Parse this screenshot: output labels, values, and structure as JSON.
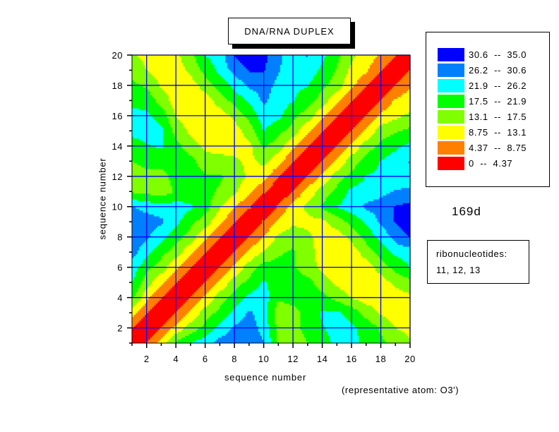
{
  "chart_data": {
    "type": "heatmap",
    "subtype": "filled-contour",
    "title": "DNA/RNA DUPLEX",
    "xlabel": "sequence number",
    "ylabel": "sequence number",
    "xlim": [
      1,
      20
    ],
    "ylim": [
      1,
      20
    ],
    "x_ticks": [
      2,
      4,
      6,
      8,
      10,
      12,
      14,
      16,
      18,
      20
    ],
    "y_ticks": [
      2,
      4,
      6,
      8,
      10,
      12,
      14,
      16,
      18,
      20
    ],
    "grid": true,
    "legend_position": "right",
    "levels": [
      {
        "label": "30.6  --  35.0",
        "min": 30.6,
        "max": 35.0,
        "color": "#0000ff"
      },
      {
        "label": "26.2  --  30.6",
        "min": 26.2,
        "max": 30.6,
        "color": "#0080ff"
      },
      {
        "label": "21.9  --  26.2",
        "min": 21.9,
        "max": 26.2,
        "color": "#00ffff"
      },
      {
        "label": "17.5  --  21.9",
        "min": 17.5,
        "max": 21.9,
        "color": "#00ff00"
      },
      {
        "label": "13.1  --  17.5",
        "min": 13.1,
        "max": 17.5,
        "color": "#80ff00"
      },
      {
        "label": "8.75  --  13.1",
        "min": 8.75,
        "max": 13.1,
        "color": "#ffff00"
      },
      {
        "label": "4.37  --  8.75",
        "min": 4.37,
        "max": 8.75,
        "color": "#ff8000"
      },
      {
        "label": "0  --  4.37",
        "min": 0,
        "max": 4.37,
        "color": "#ff0000"
      }
    ],
    "upper_triangle_rows": [
      [
        4.5,
        10.5,
        18.5,
        22,
        24.5,
        28,
        29,
        29,
        26.5,
        17,
        15,
        17.5,
        20,
        23,
        23,
        21,
        18.5,
        16,
        13.5
      ],
      [
        4.5,
        10,
        15,
        19,
        23,
        27,
        28,
        25,
        16,
        16,
        19,
        21.5,
        24,
        23,
        20,
        17,
        13,
        12
      ],
      [
        4.5,
        10,
        15,
        19,
        23,
        27,
        24,
        15,
        16,
        19,
        22.5,
        23,
        20,
        16,
        12.5,
        11,
        11
      ],
      [
        4.5,
        10,
        15,
        19.5,
        23,
        24,
        18,
        19,
        20,
        19,
        16,
        13,
        11,
        10.5,
        11,
        12
      ],
      [
        4.5,
        10,
        15,
        19,
        22.5,
        20,
        20,
        19,
        15,
        12,
        10,
        10,
        11,
        14,
        16
      ],
      [
        4.5,
        10,
        15,
        19.5,
        19,
        18,
        15,
        12,
        10,
        10,
        11,
        15,
        19,
        22
      ],
      [
        4.5,
        10,
        13.5,
        17,
        18,
        15,
        11,
        10,
        11,
        15,
        19,
        23,
        24
      ],
      [
        4.5,
        9,
        14,
        16,
        14,
        11,
        11,
        14,
        19,
        23,
        28,
        31
      ],
      [
        5,
        9.5,
        12,
        12,
        12,
        15,
        19,
        22.5,
        27,
        31,
        33
      ],
      [
        5,
        11,
        14,
        18,
        22,
        24,
        27,
        28,
        31,
        32
      ],
      [
        4.5,
        10.5,
        15,
        19,
        23,
        24,
        25,
        26.5,
        27
      ],
      [
        4.5,
        10,
        15,
        19,
        22,
        23,
        24,
        24.5
      ],
      [
        4.5,
        10,
        15,
        19.5,
        22,
        24,
        26.5
      ],
      [
        4.5,
        10,
        15,
        19,
        21,
        23
      ],
      [
        4.5,
        10,
        15,
        17,
        18.5
      ],
      [
        4.5,
        10,
        12,
        14
      ],
      [
        4.5,
        9.5,
        11
      ],
      [
        4.5,
        8.5
      ],
      [
        4.5
      ]
    ]
  },
  "annotations": {
    "structure_id": "169d",
    "ribo_title": "ribonucleotides:",
    "ribo_values": "11, 12, 13",
    "atom_note": "(representative atom: O3')"
  }
}
